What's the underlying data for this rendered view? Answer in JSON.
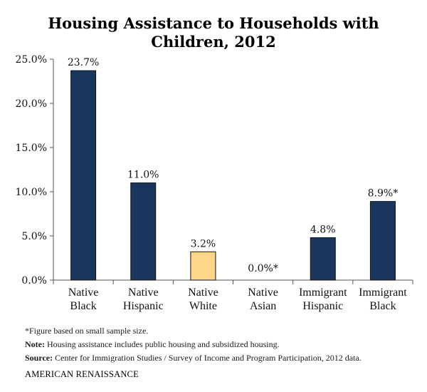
{
  "chart_data": {
    "type": "bar",
    "title_lines": [
      "Housing Assistance to Households with",
      "Children, 2012"
    ],
    "categories": [
      [
        "Native",
        "Black"
      ],
      [
        "Native",
        "Hispanic"
      ],
      [
        "Native",
        "White"
      ],
      [
        "Native",
        "Asian"
      ],
      [
        "Immigrant",
        "Hispanic"
      ],
      [
        "Immigrant",
        "Black"
      ]
    ],
    "values": [
      23.7,
      11.0,
      3.2,
      0.0,
      4.8,
      8.9
    ],
    "data_labels": [
      "23.7%",
      "11.0%",
      "3.2%",
      "0.0%*",
      "4.8%",
      "8.9%*"
    ],
    "bar_colors": [
      "#1b365d",
      "#1b365d",
      "#fdd68a",
      "#1b365d",
      "#1b365d",
      "#1b365d"
    ],
    "ylim": [
      0,
      25
    ],
    "yticks": [
      0,
      5,
      10,
      15,
      20,
      25
    ],
    "ytick_labels": [
      "0.0%",
      "5.0%",
      "10.0%",
      "15.0%",
      "20.0%",
      "25.0%"
    ],
    "grid": false
  },
  "notes": {
    "small_sample": "*Figure based on small sample size.",
    "note_label": "Note:",
    "note_text": " Housing assistance includes public housing and subsidized housing.",
    "source_label": "Source:",
    "source_text": " Center for Immigration Studies / Survey of Income and Program Participation, 2012 data."
  },
  "brand": "AMERICAN RENAISSANCE"
}
